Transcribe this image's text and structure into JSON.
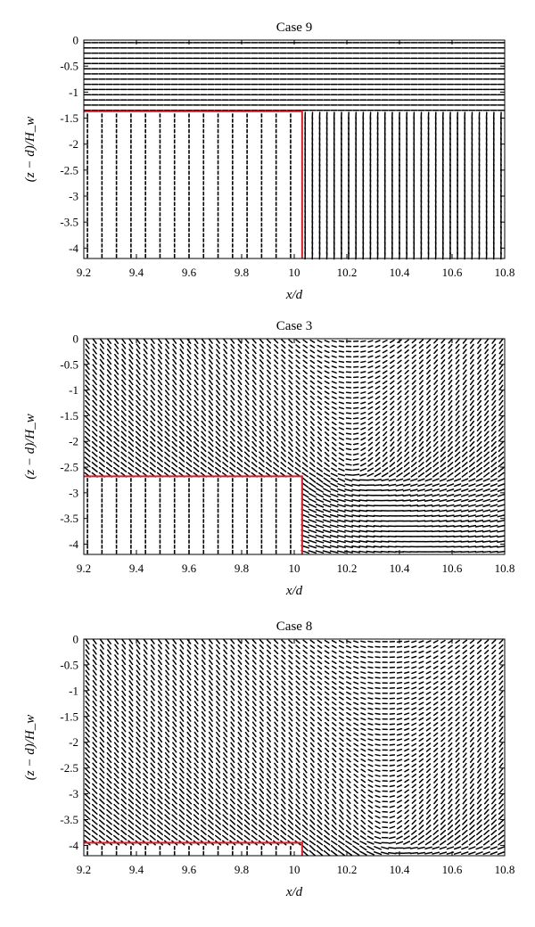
{
  "chart_data": [
    {
      "type": "vector-field",
      "title": "Case 9",
      "xlabel": "x/d",
      "ylabel": "(z − d)/H_w",
      "xlim": [
        9.2,
        10.8
      ],
      "ylim": [
        -4.2,
        0
      ],
      "xticks": [
        "9.2",
        "9.4",
        "9.6",
        "9.8",
        "10",
        "10.2",
        "10.4",
        "10.6",
        "10.8"
      ],
      "yticks": [
        "0",
        "-0.5",
        "-1",
        "-1.5",
        "-2",
        "-2.5",
        "-3",
        "-3.5",
        "-4"
      ],
      "canopy_boundary": {
        "x_end": 10.03,
        "z_top": -1.37,
        "color": "#d81e2a"
      },
      "flow": "weak-surface-layer"
    },
    {
      "type": "vector-field",
      "title": "Case 3",
      "xlabel": "x/d",
      "ylabel": "(z − d)/H_w",
      "xlim": [
        9.2,
        10.8
      ],
      "ylim": [
        -4.2,
        0
      ],
      "xticks": [
        "9.2",
        "9.4",
        "9.6",
        "9.8",
        "10",
        "10.2",
        "10.4",
        "10.6",
        "10.8"
      ],
      "yticks": [
        "0",
        "-0.5",
        "-1",
        "-1.5",
        "-2",
        "-2.5",
        "-3",
        "-3.5",
        "-4"
      ],
      "canopy_boundary": {
        "x_end": 10.03,
        "z_top": -2.68,
        "color": "#d81e2a"
      },
      "flow": "jet-with-vortex",
      "vortex_center": [
        10.22,
        -2.6
      ]
    },
    {
      "type": "vector-field",
      "title": "Case 8",
      "xlabel": "x/d",
      "ylabel": "(z − d)/H_w",
      "xlim": [
        9.2,
        10.8
      ],
      "ylim": [
        -4.2,
        0
      ],
      "xticks": [
        "9.2",
        "9.4",
        "9.6",
        "9.8",
        "10",
        "10.2",
        "10.4",
        "10.6",
        "10.8"
      ],
      "yticks": [
        "0",
        "-0.5",
        "-1",
        "-1.5",
        "-2",
        "-2.5",
        "-3",
        "-3.5",
        "-4"
      ],
      "canopy_boundary": {
        "x_end": 10.03,
        "z_top": -3.95,
        "color": "#d81e2a"
      },
      "flow": "strong-jet-near-bed",
      "vortex_center": [
        10.35,
        -3.9
      ]
    }
  ]
}
